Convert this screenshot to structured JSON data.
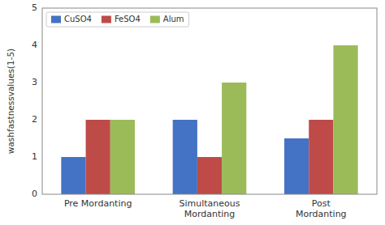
{
  "chart_data": {
    "type": "bar",
    "categories": [
      "Pre Mordanting",
      "Simultaneous\nMordanting",
      "Post\nMordanting"
    ],
    "series": [
      {
        "name": "CuSO4",
        "color": "#4472C4",
        "values": [
          1.0,
          2.0,
          1.5
        ]
      },
      {
        "name": "FeSO4",
        "color": "#BE4B48",
        "values": [
          2.0,
          1.0,
          2.0
        ]
      },
      {
        "name": "Alum",
        "color": "#9BBB59",
        "values": [
          2.0,
          3.0,
          4.0
        ]
      }
    ],
    "y_label": "washfastnessvalues(1-5)",
    "ylim": [
      0,
      5
    ],
    "yticks": [
      0,
      1,
      2,
      3,
      4,
      5
    ],
    "legend": "upper left",
    "grid": false
  }
}
